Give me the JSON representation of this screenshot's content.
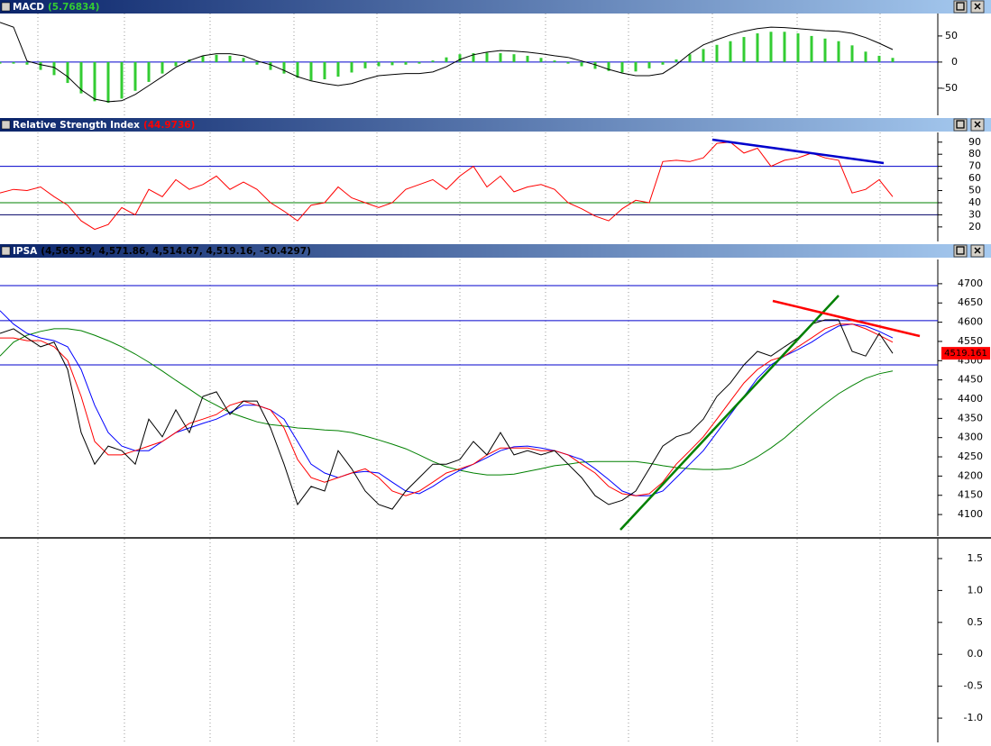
{
  "chart_data": [
    {
      "type": "combo",
      "title": "MACD",
      "title_value": "(5.76834)",
      "title_value_color": "#33cc33",
      "ylim": [
        -102,
        93
      ],
      "yticks": [
        50,
        0,
        -50
      ],
      "hlines": [
        {
          "value": 0,
          "color": "#0000cc"
        }
      ],
      "series": [
        {
          "kind": "bar",
          "color": "#33cc33",
          "values": [
            -3,
            -3,
            -5,
            -15,
            -25,
            -40,
            -60,
            -75,
            -78,
            -70,
            -55,
            -38,
            -22,
            -8,
            5,
            12,
            14,
            12,
            8,
            -5,
            -15,
            -22,
            -30,
            -35,
            -33,
            -28,
            -20,
            -12,
            -8,
            -6,
            -5,
            -3,
            3,
            9,
            15,
            17,
            18,
            17,
            15,
            12,
            8,
            3,
            -3,
            -8,
            -13,
            -17,
            -20,
            -18,
            -12,
            -5,
            5,
            15,
            25,
            33,
            40,
            48,
            55,
            58,
            58,
            55,
            50,
            45,
            40,
            32,
            20,
            12,
            8
          ]
        },
        {
          "kind": "line",
          "color": "#000000",
          "values": [
            76,
            67,
            2,
            -5,
            -10,
            -28,
            -53,
            -71,
            -76,
            -74,
            -62,
            -45,
            -28,
            -10,
            3,
            12,
            16,
            16,
            12,
            2,
            -5,
            -16,
            -28,
            -36,
            -41,
            -45,
            -41,
            -33,
            -26,
            -24,
            -22,
            -22,
            -19,
            -9,
            5,
            14,
            19,
            22,
            21,
            19,
            16,
            12,
            9,
            2,
            -5,
            -14,
            -21,
            -26,
            -26,
            -22,
            -5,
            16,
            33,
            43,
            52,
            59,
            64,
            67,
            66,
            64,
            62,
            60,
            59,
            55,
            47,
            36,
            24
          ]
        }
      ]
    },
    {
      "type": "combo",
      "title": "Relative Strength Index",
      "title_value": "(44.9736)",
      "title_value_color": "#ff0000",
      "ylim": [
        8,
        98
      ],
      "yticks": [
        90,
        80,
        70,
        60,
        50,
        40,
        30,
        20
      ],
      "hlines": [
        {
          "value": 70,
          "color": "#0000cc"
        },
        {
          "value": 40,
          "color": "#008000"
        },
        {
          "value": 30,
          "color": "#000066"
        }
      ],
      "series": [
        {
          "kind": "line",
          "color": "#ff0000",
          "values": [
            48,
            51,
            50,
            53,
            45,
            38,
            25,
            18,
            22,
            36,
            30,
            51,
            45,
            59,
            51,
            55,
            62,
            51,
            57,
            51,
            40,
            33,
            25,
            38,
            40,
            53,
            44,
            40,
            36,
            40,
            51,
            55,
            59,
            51,
            62,
            70,
            53,
            62,
            49,
            53,
            55,
            51,
            40,
            35,
            29,
            25,
            35,
            42,
            40,
            74,
            75,
            74,
            77,
            89,
            90,
            81,
            85,
            70,
            75,
            77,
            81,
            77,
            75,
            48,
            51,
            59,
            45
          ]
        }
      ]
    },
    {
      "type": "combo",
      "title": "IPSA",
      "title_value": "(4,569.59, 4,571.86, 4,514.67, 4,519.16, -50.4297)",
      "title_value_color": "#000000",
      "ylim": [
        4044,
        4763
      ],
      "yticks": [
        4700,
        4650,
        4600,
        4550,
        4500,
        4450,
        4400,
        4350,
        4300,
        4250,
        4200,
        4150,
        4100
      ],
      "hlines": [
        {
          "value": 4695,
          "color": "#0000cc"
        },
        {
          "value": 4604,
          "color": "#0000cc"
        },
        {
          "value": 4489,
          "color": "#0000cc"
        }
      ],
      "last_value": 4519.161,
      "last_value_color": "#ff0000",
      "series": [
        {
          "kind": "line",
          "color": "#008000",
          "values": [
            4512,
            4548,
            4566,
            4576,
            4583,
            4583,
            4578,
            4566,
            4552,
            4536,
            4517,
            4496,
            4473,
            4449,
            4426,
            4402,
            4384,
            4365,
            4353,
            4341,
            4334,
            4330,
            4325,
            4323,
            4320,
            4318,
            4313,
            4304,
            4294,
            4283,
            4271,
            4255,
            4238,
            4224,
            4215,
            4208,
            4203,
            4203,
            4205,
            4212,
            4219,
            4227,
            4231,
            4236,
            4238,
            4238,
            4238,
            4238,
            4233,
            4227,
            4222,
            4219,
            4217,
            4217,
            4219,
            4231,
            4250,
            4273,
            4299,
            4330,
            4360,
            4388,
            4414,
            4435,
            4454,
            4466,
            4473
          ]
        },
        {
          "kind": "line",
          "color": "#0000ff",
          "values": [
            4630,
            4595,
            4571,
            4559,
            4552,
            4536,
            4477,
            4384,
            4313,
            4278,
            4266,
            4266,
            4290,
            4313,
            4325,
            4337,
            4348,
            4365,
            4384,
            4384,
            4372,
            4348,
            4290,
            4231,
            4208,
            4196,
            4208,
            4212,
            4208,
            4184,
            4161,
            4154,
            4173,
            4196,
            4215,
            4231,
            4248,
            4266,
            4276,
            4278,
            4273,
            4266,
            4255,
            4243,
            4219,
            4191,
            4161,
            4149,
            4149,
            4161,
            4196,
            4231,
            4266,
            4313,
            4360,
            4407,
            4454,
            4489,
            4512,
            4529,
            4548,
            4571,
            4590,
            4595,
            4590,
            4576,
            4559
          ]
        },
        {
          "kind": "line",
          "color": "#ff0000",
          "values": [
            4559,
            4559,
            4552,
            4552,
            4536,
            4501,
            4407,
            4290,
            4255,
            4255,
            4266,
            4278,
            4290,
            4313,
            4337,
            4348,
            4360,
            4384,
            4395,
            4384,
            4372,
            4325,
            4243,
            4196,
            4184,
            4196,
            4208,
            4219,
            4196,
            4161,
            4149,
            4161,
            4184,
            4208,
            4219,
            4231,
            4255,
            4273,
            4273,
            4273,
            4266,
            4266,
            4255,
            4231,
            4208,
            4173,
            4154,
            4149,
            4154,
            4184,
            4231,
            4266,
            4302,
            4348,
            4395,
            4442,
            4477,
            4501,
            4512,
            4536,
            4559,
            4583,
            4595,
            4595,
            4583,
            4566,
            4548
          ]
        },
        {
          "kind": "line",
          "color": "#000000",
          "values": [
            4571,
            4583,
            4559,
            4536,
            4548,
            4477,
            4313,
            4231,
            4278,
            4266,
            4231,
            4348,
            4302,
            4372,
            4313,
            4407,
            4419,
            4360,
            4395,
            4395,
            4325,
            4231,
            4126,
            4173,
            4161,
            4266,
            4219,
            4161,
            4126,
            4114,
            4161,
            4196,
            4231,
            4231,
            4243,
            4290,
            4255,
            4313,
            4255,
            4266,
            4255,
            4266,
            4231,
            4196,
            4149,
            4126,
            4137,
            4161,
            4219,
            4278,
            4302,
            4313,
            4348,
            4407,
            4442,
            4489,
            4524,
            4512,
            4536,
            4559,
            4595,
            4606,
            4606,
            4524,
            4512,
            4571,
            4519
          ]
        }
      ]
    },
    {
      "type": "combo",
      "ylim": [
        -1.38,
        1.81
      ],
      "yticks": [
        1.5,
        {
          "value": 1,
          "label": "1.0"
        },
        0.5,
        {
          "value": 0,
          "label": "0.0"
        },
        -0.5,
        {
          "value": -1,
          "label": "-1.0"
        }
      ],
      "series": []
    }
  ]
}
